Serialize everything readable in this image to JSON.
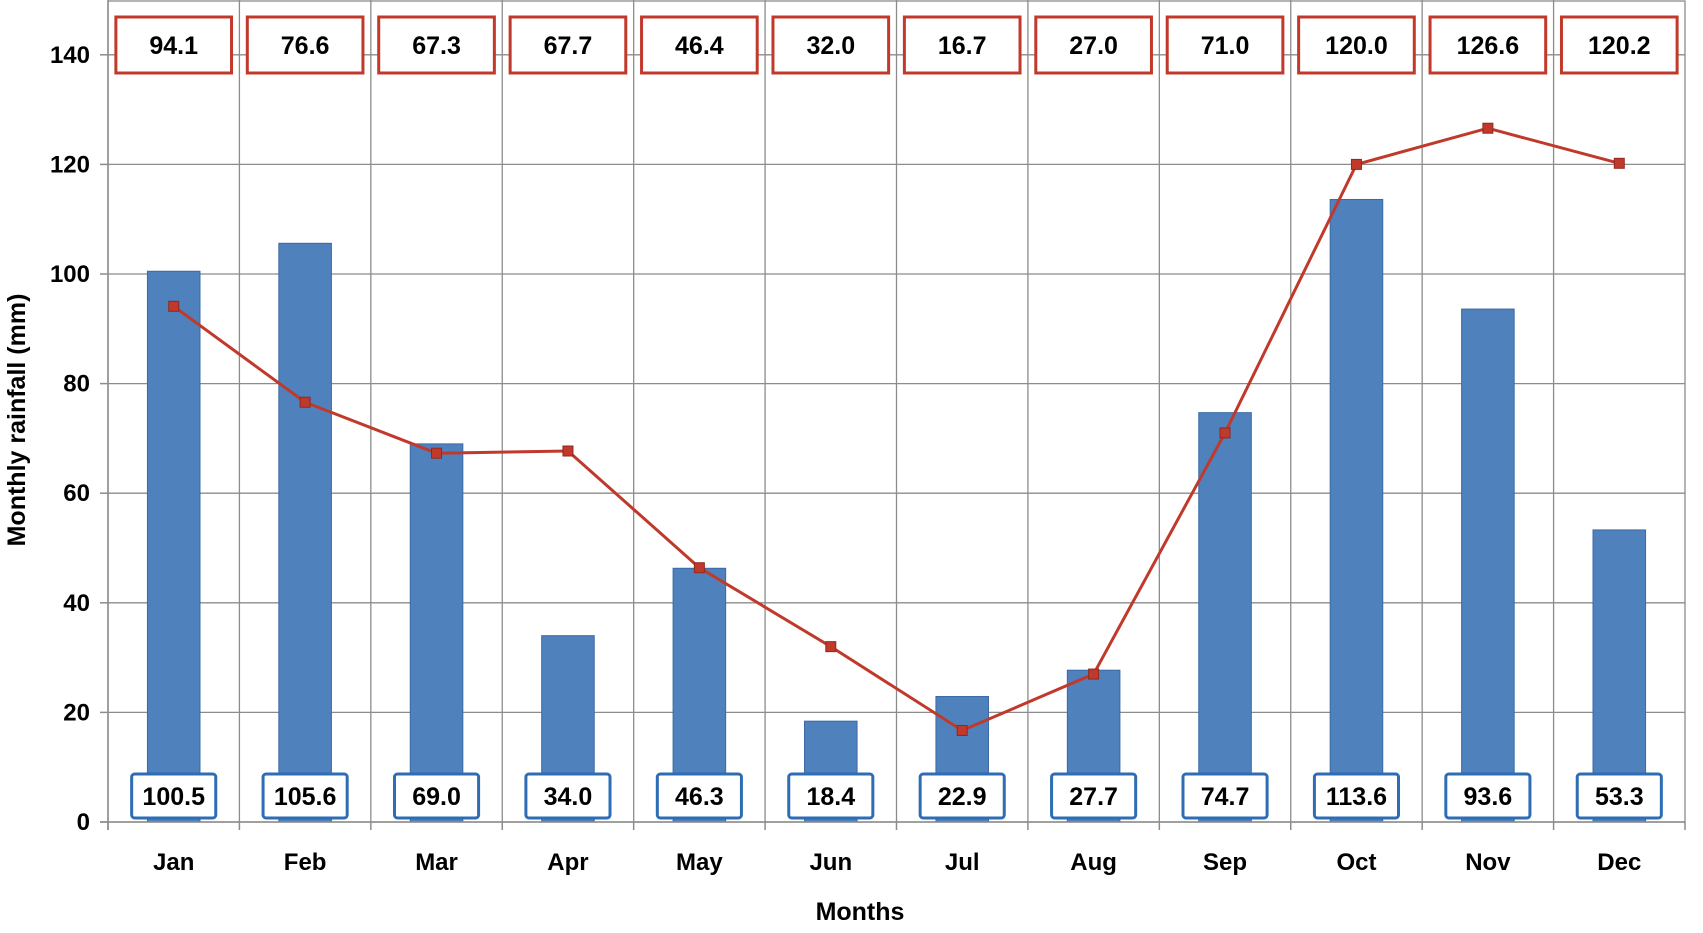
{
  "chart_data": {
    "type": "bar",
    "categories": [
      "Jan",
      "Feb",
      "Mar",
      "Apr",
      "May",
      "Jun",
      "Jul",
      "Aug",
      "Sep",
      "Oct",
      "Nov",
      "Dec"
    ],
    "series": [
      {
        "type": "bar",
        "color": "#4F81BD",
        "values": [
          100.5,
          105.6,
          69.0,
          34.0,
          46.3,
          18.4,
          22.9,
          27.7,
          74.7,
          113.6,
          93.6,
          53.3
        ],
        "labels": [
          "100.5",
          "105.6",
          "69.0",
          "34.0",
          "46.3",
          "18.4",
          "22.9",
          "27.7",
          "74.7",
          "113.6",
          "93.6",
          "53.3"
        ]
      },
      {
        "type": "line",
        "color": "#C0392B",
        "values": [
          94.1,
          76.6,
          67.3,
          67.7,
          46.4,
          32.0,
          16.7,
          27.0,
          71.0,
          120.0,
          126.6,
          120.2
        ],
        "labels": [
          "94.1",
          "76.6",
          "67.3",
          "67.7",
          "46.4",
          "32.0",
          "16.7",
          "27.0",
          "71.0",
          "120.0",
          "126.6",
          "120.2"
        ]
      }
    ],
    "xlabel": "Months",
    "ylabel": "Monthly rainfall (mm)",
    "ylim": [
      0,
      150
    ],
    "yticks": [
      0,
      20,
      40,
      60,
      80,
      100,
      120,
      140
    ],
    "grid": true,
    "legend": "none"
  }
}
